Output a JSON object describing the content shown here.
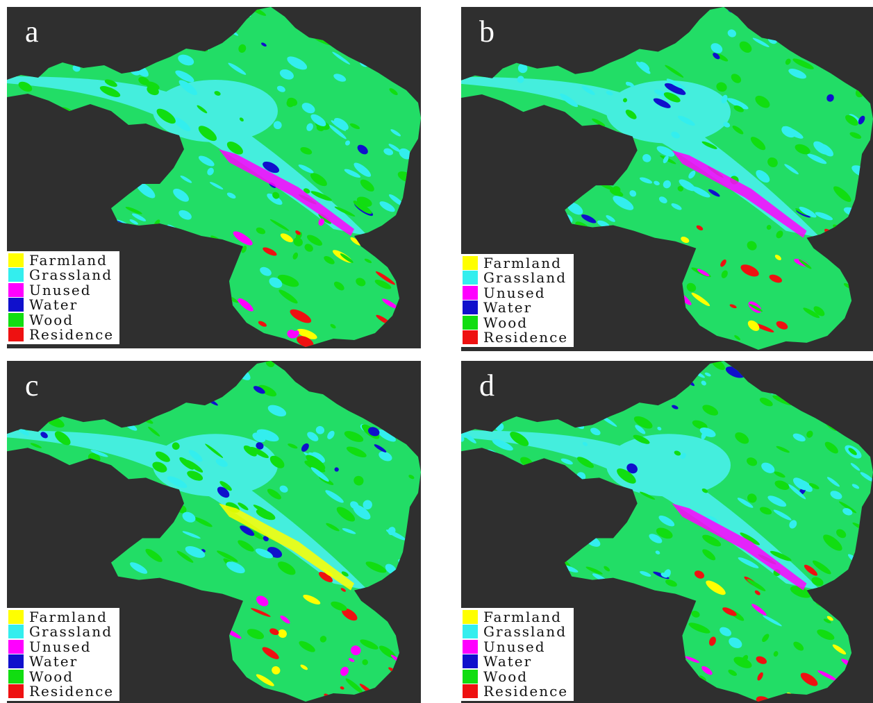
{
  "panels": [
    {
      "label": "a"
    },
    {
      "label": "b"
    },
    {
      "label": "c"
    },
    {
      "label": "d"
    }
  ],
  "legend": [
    {
      "label": "Farmland",
      "color": "#ffff00"
    },
    {
      "label": "Grassland",
      "color": "#33eeee"
    },
    {
      "label": "Unused",
      "color": "#ff00ff"
    },
    {
      "label": "Water",
      "color": "#1010cc"
    },
    {
      "label": "Wood",
      "color": "#11dd11"
    },
    {
      "label": "Residence",
      "color": "#ee1111"
    }
  ],
  "colors": {
    "background": "#2f2f2f",
    "region_base": "#22dd66",
    "grass_tint": "#44eedd"
  }
}
